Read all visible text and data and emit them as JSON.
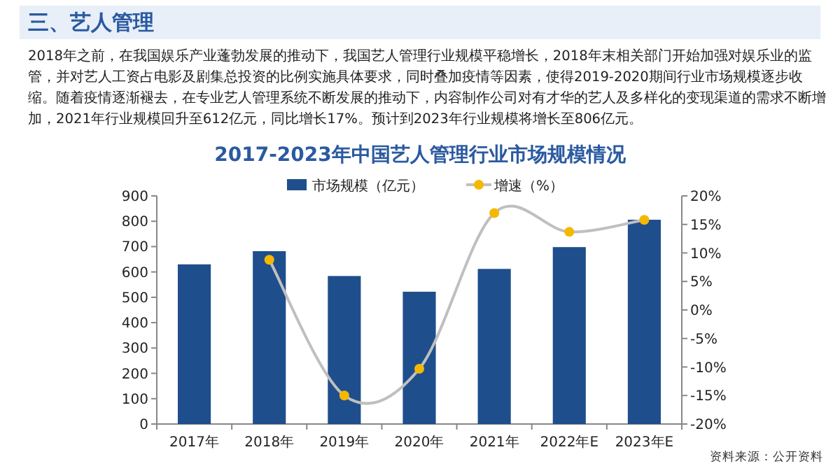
{
  "chart_data": {
    "type": "bar",
    "title": "2017-2023年中国艺人管理行业市场规模情况",
    "annotations": [
      "三、艺人管理",
      "2018年之前，在我国娱乐产业蓬勃发展的推动下，我国艺人管理行业规模平稳增长，2018年末相关部门开始加强对娱乐业的监管，并对艺人工资占电影及剧集总投资的比例实施具体要求，同时叠加疫情等因素，使得2019-2020期间行业市场规模逐步收缩。随着疫情逐渐褪去，在专业艺人管理系统不断发展的推动下，内容制作公司对有才华的艺人及多样化的变现渠道的需求不断增加，2021年行业规模回升至612亿元，同比增长17%。预计到2023年行业规模将增长至806亿元。",
      "资料来源：公开资料"
    ],
    "categories": [
      "2017年",
      "2018年",
      "2019年",
      "2020年",
      "2021年",
      "2022年E",
      "2023年E"
    ],
    "series": [
      {
        "name": "市场规模（亿元）",
        "color": "#1f4e8c",
        "values": [
          630,
          682,
          584,
          522,
          612,
          698,
          806
        ]
      },
      {
        "name": "增速（%）",
        "type": "line",
        "axis": "y2",
        "color": "#bfbfbf",
        "marker": "circle",
        "values": [
          null,
          8.8,
          -15,
          -10.3,
          17,
          13.7,
          15.8
        ]
      }
    ],
    "ylim": [
      0,
      900
    ],
    "yticks": [
      0,
      100,
      200,
      300,
      400,
      500,
      600,
      700,
      800,
      900
    ],
    "y2lim": [
      -20,
      20
    ],
    "y2ticks": [
      {
        "value": -20,
        "label": "-20%"
      },
      {
        "value": -15,
        "label": "-15%"
      },
      {
        "value": -10,
        "label": "-10%"
      },
      {
        "value": -5,
        "label": "-5%"
      },
      {
        "value": 0,
        "label": "0%"
      },
      {
        "value": 5,
        "label": "5%"
      },
      {
        "value": 10,
        "label": "10%"
      },
      {
        "value": 15,
        "label": "15%"
      },
      {
        "value": 20,
        "label": "20%"
      }
    ],
    "grid": false,
    "legend": "top"
  }
}
